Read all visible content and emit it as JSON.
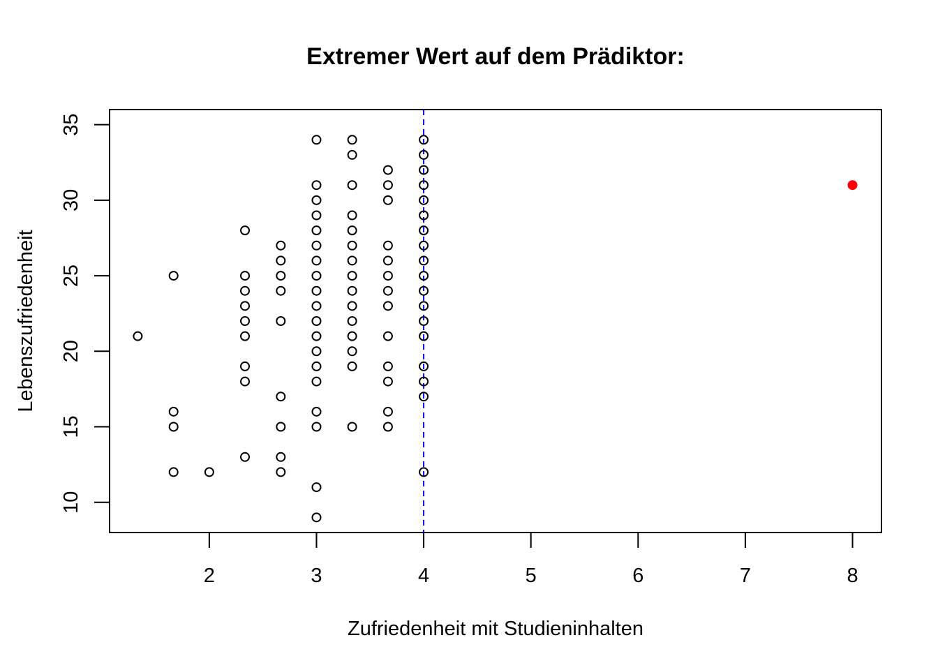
{
  "chart_data": {
    "type": "scatter",
    "title": "Extremer Wert auf dem Prädiktor:",
    "xlabel": "Zufriedenheit mit Studieninhalten",
    "ylabel": "Lebenszufriedenheit",
    "xlim": [
      1.07,
      8.27
    ],
    "ylim": [
      8.0,
      36.0
    ],
    "x_ticks": [
      2,
      3,
      4,
      5,
      6,
      7,
      8
    ],
    "y_ticks": [
      10,
      15,
      20,
      25,
      30,
      35
    ],
    "grid": false,
    "legend": "none",
    "reference_line": {
      "orientation": "vertical",
      "x": 4,
      "style": "dashed",
      "color": "#0000ff"
    },
    "series": [
      {
        "marker": "open-circle",
        "color": "#000000",
        "points": [
          [
            1.333,
            21
          ],
          [
            1.667,
            25
          ],
          [
            1.667,
            16
          ],
          [
            1.667,
            15
          ],
          [
            1.667,
            12
          ],
          [
            2.0,
            12
          ],
          [
            2.333,
            28
          ],
          [
            2.333,
            25
          ],
          [
            2.333,
            24
          ],
          [
            2.333,
            23
          ],
          [
            2.333,
            22
          ],
          [
            2.333,
            21
          ],
          [
            2.333,
            19
          ],
          [
            2.333,
            18
          ],
          [
            2.333,
            13
          ],
          [
            2.667,
            27
          ],
          [
            2.667,
            26
          ],
          [
            2.667,
            25
          ],
          [
            2.667,
            24
          ],
          [
            2.667,
            22
          ],
          [
            2.667,
            17
          ],
          [
            2.667,
            15
          ],
          [
            2.667,
            13
          ],
          [
            2.667,
            12
          ],
          [
            3.0,
            34
          ],
          [
            3.0,
            31
          ],
          [
            3.0,
            30
          ],
          [
            3.0,
            29
          ],
          [
            3.0,
            28
          ],
          [
            3.0,
            27
          ],
          [
            3.0,
            26
          ],
          [
            3.0,
            25
          ],
          [
            3.0,
            24
          ],
          [
            3.0,
            23
          ],
          [
            3.0,
            22
          ],
          [
            3.0,
            21
          ],
          [
            3.0,
            20
          ],
          [
            3.0,
            19
          ],
          [
            3.0,
            18
          ],
          [
            3.0,
            16
          ],
          [
            3.0,
            15
          ],
          [
            3.0,
            11
          ],
          [
            3.0,
            9
          ],
          [
            3.333,
            34
          ],
          [
            3.333,
            33
          ],
          [
            3.333,
            31
          ],
          [
            3.333,
            29
          ],
          [
            3.333,
            28
          ],
          [
            3.333,
            27
          ],
          [
            3.333,
            26
          ],
          [
            3.333,
            25
          ],
          [
            3.333,
            24
          ],
          [
            3.333,
            23
          ],
          [
            3.333,
            22
          ],
          [
            3.333,
            21
          ],
          [
            3.333,
            20
          ],
          [
            3.333,
            19
          ],
          [
            3.333,
            15
          ],
          [
            3.667,
            32
          ],
          [
            3.667,
            31
          ],
          [
            3.667,
            30
          ],
          [
            3.667,
            27
          ],
          [
            3.667,
            26
          ],
          [
            3.667,
            25
          ],
          [
            3.667,
            24
          ],
          [
            3.667,
            23
          ],
          [
            3.667,
            21
          ],
          [
            3.667,
            19
          ],
          [
            3.667,
            18
          ],
          [
            3.667,
            16
          ],
          [
            3.667,
            15
          ],
          [
            4.0,
            34
          ],
          [
            4.0,
            33
          ],
          [
            4.0,
            32
          ],
          [
            4.0,
            31
          ],
          [
            4.0,
            30
          ],
          [
            4.0,
            29
          ],
          [
            4.0,
            28
          ],
          [
            4.0,
            27
          ],
          [
            4.0,
            26
          ],
          [
            4.0,
            25
          ],
          [
            4.0,
            24
          ],
          [
            4.0,
            23
          ],
          [
            4.0,
            22
          ],
          [
            4.0,
            21
          ],
          [
            4.0,
            19
          ],
          [
            4.0,
            18
          ],
          [
            4.0,
            17
          ],
          [
            4.0,
            12
          ]
        ]
      },
      {
        "marker": "filled-circle",
        "color": "#ff0000",
        "points": [
          [
            8,
            31
          ]
        ]
      }
    ]
  }
}
